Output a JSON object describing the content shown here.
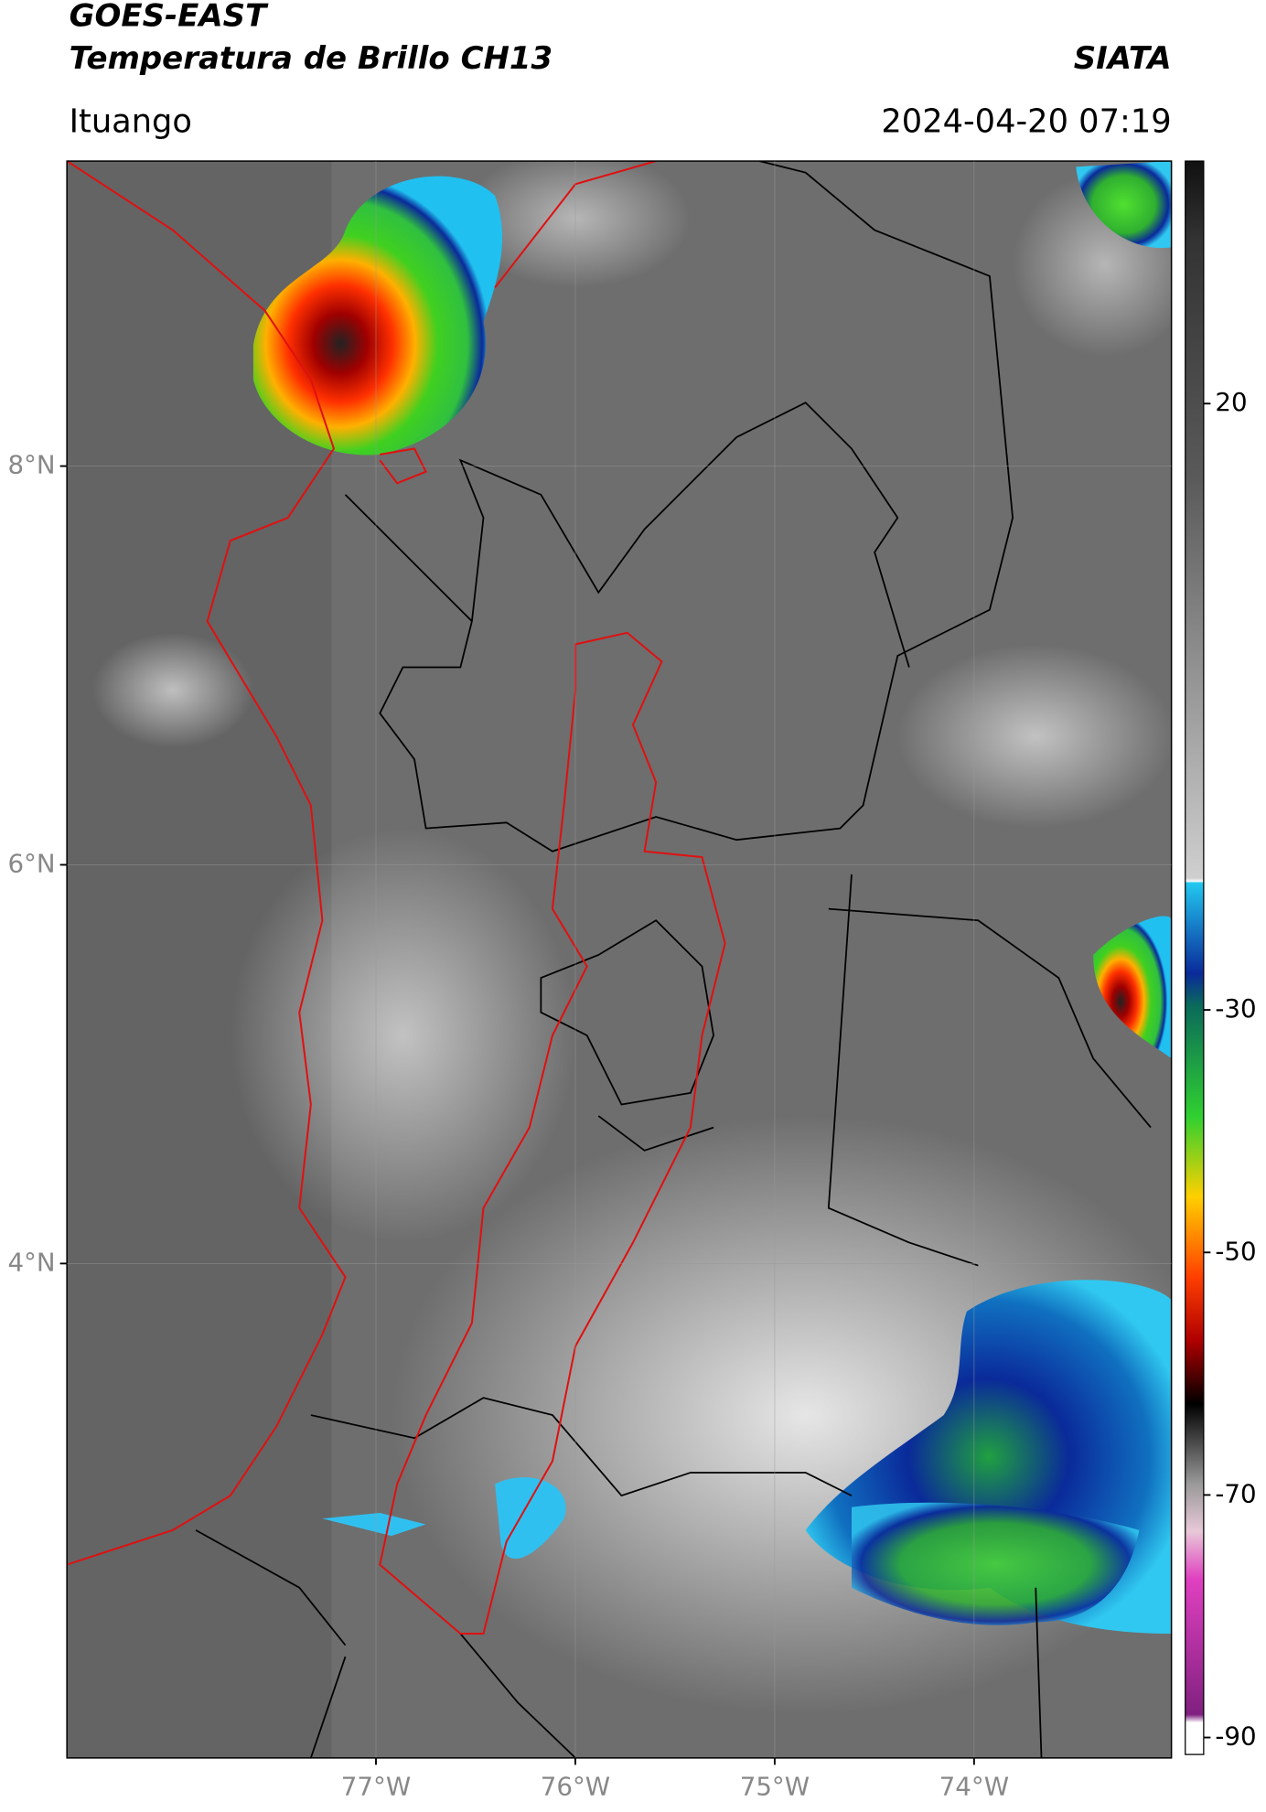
{
  "header": {
    "title": "GOES-EAST",
    "subtitle": "Temperatura de Brillo CH13",
    "source": "SIATA",
    "location": "Ituango",
    "timestamp": "2024-04-20 07:19"
  },
  "map": {
    "xlim": [
      -78.55,
      -73.01
    ],
    "ylim": [
      1.52,
      9.53
    ],
    "xticks": [
      {
        "value": -77,
        "label": "77°W"
      },
      {
        "value": -76,
        "label": "76°W"
      },
      {
        "value": -75,
        "label": "75°W"
      },
      {
        "value": -74,
        "label": "74°W"
      }
    ],
    "yticks": [
      {
        "value": 4,
        "label": "4°N"
      },
      {
        "value": 6,
        "label": "6°N"
      },
      {
        "value": 8,
        "label": "8°N"
      }
    ],
    "grid": true
  },
  "colorbar": {
    "ylim": [
      -91.4,
      40
    ],
    "yticks": [
      20,
      -30,
      -50,
      -70,
      -90
    ]
  }
}
